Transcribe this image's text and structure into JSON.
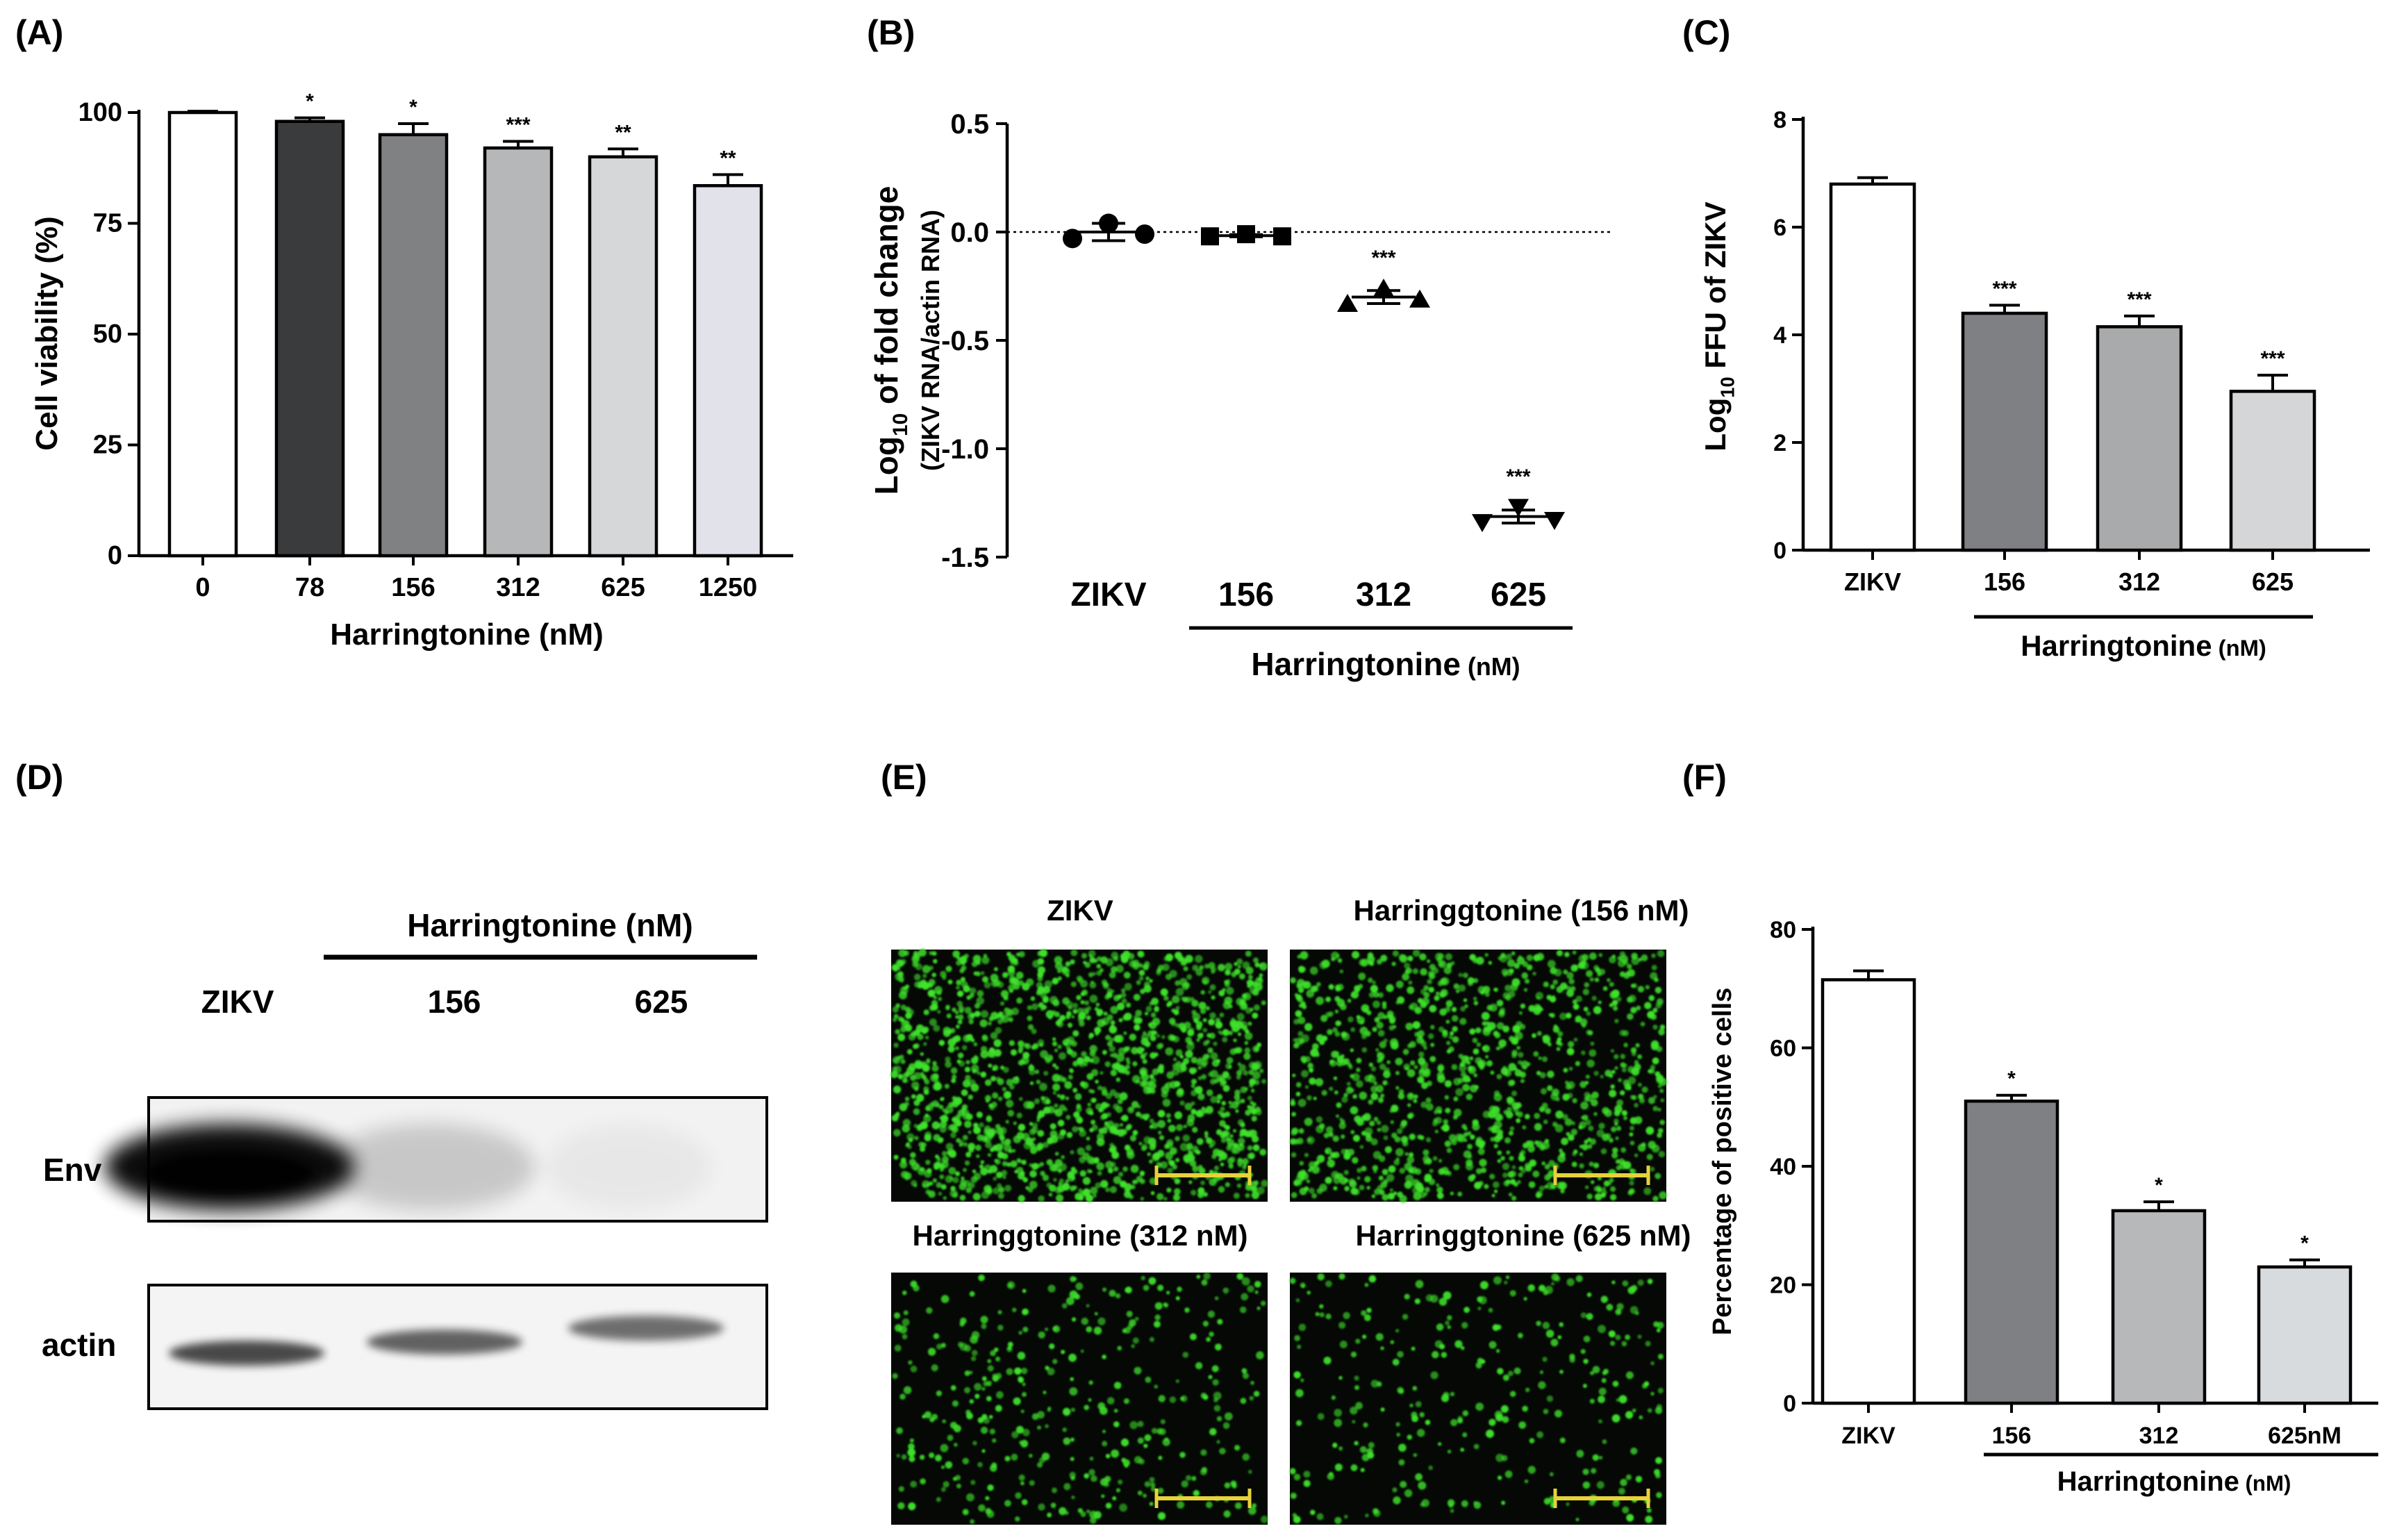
{
  "panels": {
    "A": {
      "label": "(A)"
    },
    "B": {
      "label": "(B)"
    },
    "C": {
      "label": "(C)"
    },
    "D": {
      "label": "(D)"
    },
    "E": {
      "label": "(E)"
    },
    "F": {
      "label": "(F)"
    }
  },
  "chart_data": [
    {
      "id": "A",
      "type": "bar",
      "categories": [
        "0",
        "78",
        "156",
        "312",
        "625",
        "1250"
      ],
      "values": [
        100,
        98,
        95,
        92,
        90,
        83.5
      ],
      "errors": [
        0.3,
        0.8,
        2.5,
        1.5,
        1.8,
        2.5
      ],
      "significance": [
        "",
        "*",
        "*",
        "***",
        "**",
        "**"
      ],
      "bar_colors": [
        "#ffffff",
        "#3a3b3d",
        "#808183",
        "#b6b7b9",
        "#d6d7d9",
        "#e1e2ea"
      ],
      "xlabel": "Harringtonine (nM)",
      "ylabel": "Cell viability (%)",
      "ylim": [
        0,
        100
      ],
      "yticks": [
        "0",
        "25",
        "50",
        "75",
        "100"
      ]
    },
    {
      "id": "B",
      "type": "scatter",
      "categories": [
        "ZIKV",
        "156",
        "312",
        "625"
      ],
      "markers": [
        "circle",
        "square",
        "triangle-up",
        "triangle-down"
      ],
      "points": [
        [
          -0.03,
          0.04,
          -0.01
        ],
        [
          -0.02,
          -0.01,
          -0.02
        ],
        [
          -0.33,
          -0.26,
          -0.31
        ],
        [
          -1.34,
          -1.27,
          -1.33
        ]
      ],
      "means": [
        0.0,
        -0.017,
        -0.3,
        -1.313
      ],
      "errors": [
        0.04,
        0.005,
        0.03,
        0.03
      ],
      "significance": [
        "",
        "",
        "***",
        "***"
      ],
      "ylabel_main": "Log",
      "ylabel_sub": "10",
      "ylabel_rest": " of fold change",
      "ylabel_line2": "(ZIKV RNA/actin RNA)",
      "group_label": "Harringtonine",
      "group_unit": " (nM)",
      "ylim": [
        -1.5,
        0.5
      ],
      "yticks": [
        "-1.5",
        "-1.0",
        "-0.5",
        "0.0",
        "0.5"
      ]
    },
    {
      "id": "C",
      "type": "bar",
      "categories": [
        "ZIKV",
        "156",
        "312",
        "625"
      ],
      "values": [
        6.8,
        4.4,
        4.15,
        2.95
      ],
      "errors": [
        0.12,
        0.15,
        0.2,
        0.3
      ],
      "significance": [
        "",
        "***",
        "***",
        "***"
      ],
      "bar_colors": [
        "#ffffff",
        "#7f8083",
        "#a9aaac",
        "#d5d6d8"
      ],
      "ylabel_main": "Log",
      "ylabel_sub": "10",
      "ylabel_rest": " FFU of ZIKV",
      "group_label": "Harringtonine",
      "group_unit": " (nM)",
      "ylim": [
        0,
        8
      ],
      "yticks": [
        "0",
        "2",
        "4",
        "6",
        "8"
      ]
    },
    {
      "id": "F",
      "type": "bar",
      "categories": [
        "ZIKV",
        "156",
        "312",
        "625nM"
      ],
      "values": [
        71.5,
        51,
        32.5,
        23
      ],
      "errors": [
        1.5,
        1.0,
        1.5,
        1.2
      ],
      "significance": [
        "",
        "*",
        "*",
        "*"
      ],
      "bar_colors": [
        "#ffffff",
        "#7f8083",
        "#b7b8ba",
        "#d8dbdd"
      ],
      "ylabel": "Percentage of positive cells",
      "group_label": "Harringtonine",
      "group_unit": " (nM)",
      "ylim": [
        0,
        80
      ],
      "yticks": [
        "0",
        "20",
        "40",
        "60",
        "80"
      ]
    }
  ],
  "western": {
    "header": "Harringtonine (nM)",
    "lanes": [
      "ZIKV",
      "156",
      "625"
    ],
    "rows": [
      "Env",
      "actin"
    ],
    "env_intensity": [
      1.0,
      0.18,
      0.04
    ],
    "actin_intensity": [
      0.7,
      0.6,
      0.55
    ]
  },
  "microscopy": {
    "titles": [
      "ZIKV",
      "Harringgtonine (156 nM)",
      "Harringgtonine (312 nM)",
      "Harringgtonine (625 nM)"
    ],
    "density": [
      1.0,
      0.75,
      0.25,
      0.2
    ],
    "background": "#050805",
    "cell_color": "#3fe22b",
    "scale_bar_color": "#e6d23a"
  }
}
